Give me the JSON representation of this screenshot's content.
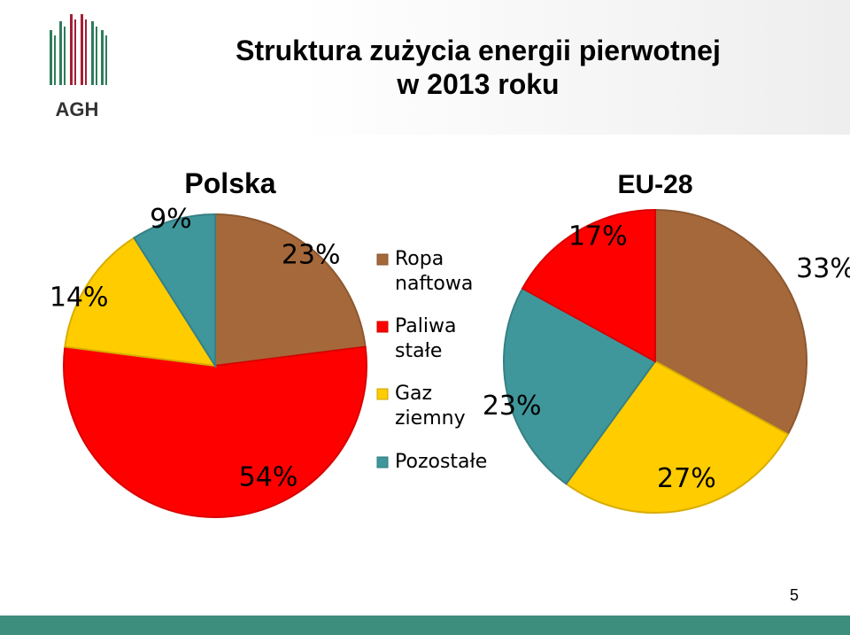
{
  "header": {
    "title_line1": "Struktura zużycia energii pierwotnej",
    "title_line2": "w 2013 roku",
    "logo_text": "AGH"
  },
  "slide_number": "5",
  "colors": {
    "ropa": "#A5683A",
    "paliwa": "#FF0000",
    "gaz": "#FFCC00",
    "pozostale": "#3F979B",
    "logo_green": "#2E7D5B",
    "logo_red": "#A31F34",
    "footer": "#3E8E7E"
  },
  "chart_data": [
    {
      "type": "pie",
      "title": "Polska",
      "categories": [
        "Ropa naftowa",
        "Paliwa stałe",
        "Gaz ziemny",
        "Pozostałe"
      ],
      "values": [
        23,
        54,
        14,
        9
      ],
      "data_labels": [
        "23%",
        "54%",
        "14%",
        "9%"
      ]
    },
    {
      "type": "pie",
      "title": "EU-28",
      "categories": [
        "Ropa naftowa",
        "Gaz ziemny",
        "Pozostałe",
        "Paliwa stałe"
      ],
      "values": [
        33,
        27,
        23,
        17
      ],
      "data_labels": [
        "33%",
        "27%",
        "23%",
        "17%"
      ]
    }
  ],
  "legend": {
    "items": [
      {
        "line1": "Ropa",
        "line2": "naftowa",
        "color_key": "ropa"
      },
      {
        "line1": "Paliwa",
        "line2": "stałe",
        "color_key": "paliwa"
      },
      {
        "line1": "Gaz",
        "line2": "ziemny",
        "color_key": "gaz"
      },
      {
        "line1": "Pozostałe",
        "line2": "",
        "color_key": "pozostale"
      }
    ]
  }
}
